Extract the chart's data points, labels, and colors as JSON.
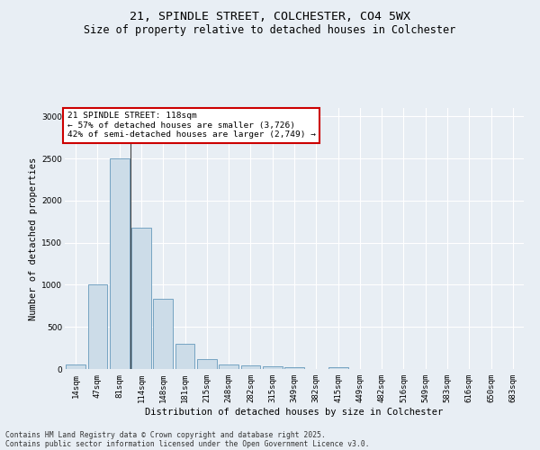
{
  "title_line1": "21, SPINDLE STREET, COLCHESTER, CO4 5WX",
  "title_line2": "Size of property relative to detached houses in Colchester",
  "xlabel": "Distribution of detached houses by size in Colchester",
  "ylabel": "Number of detached properties",
  "categories": [
    "14sqm",
    "47sqm",
    "81sqm",
    "114sqm",
    "148sqm",
    "181sqm",
    "215sqm",
    "248sqm",
    "282sqm",
    "315sqm",
    "349sqm",
    "382sqm",
    "415sqm",
    "449sqm",
    "482sqm",
    "516sqm",
    "549sqm",
    "583sqm",
    "616sqm",
    "650sqm",
    "683sqm"
  ],
  "values": [
    50,
    1000,
    2500,
    1680,
    830,
    295,
    120,
    50,
    45,
    30,
    25,
    0,
    20,
    0,
    0,
    0,
    0,
    0,
    0,
    0,
    0
  ],
  "bar_color": "#ccdce8",
  "bar_edge_color": "#6699bb",
  "highlight_index": 2,
  "annotation_title": "21 SPINDLE STREET: 118sqm",
  "annotation_line2": "← 57% of detached houses are smaller (3,726)",
  "annotation_line3": "42% of semi-detached houses are larger (2,749) →",
  "annotation_box_color": "#ffffff",
  "annotation_box_edge": "#cc0000",
  "ylim": [
    0,
    3100
  ],
  "yticks": [
    0,
    500,
    1000,
    1500,
    2000,
    2500,
    3000
  ],
  "footer_line1": "Contains HM Land Registry data © Crown copyright and database right 2025.",
  "footer_line2": "Contains public sector information licensed under the Open Government Licence v3.0.",
  "bg_color": "#e8eef4",
  "grid_color": "#ffffff",
  "title_fontsize": 9.5,
  "subtitle_fontsize": 8.5,
  "axis_label_fontsize": 7.5,
  "tick_fontsize": 6.5,
  "annotation_fontsize": 6.8,
  "footer_fontsize": 5.8
}
